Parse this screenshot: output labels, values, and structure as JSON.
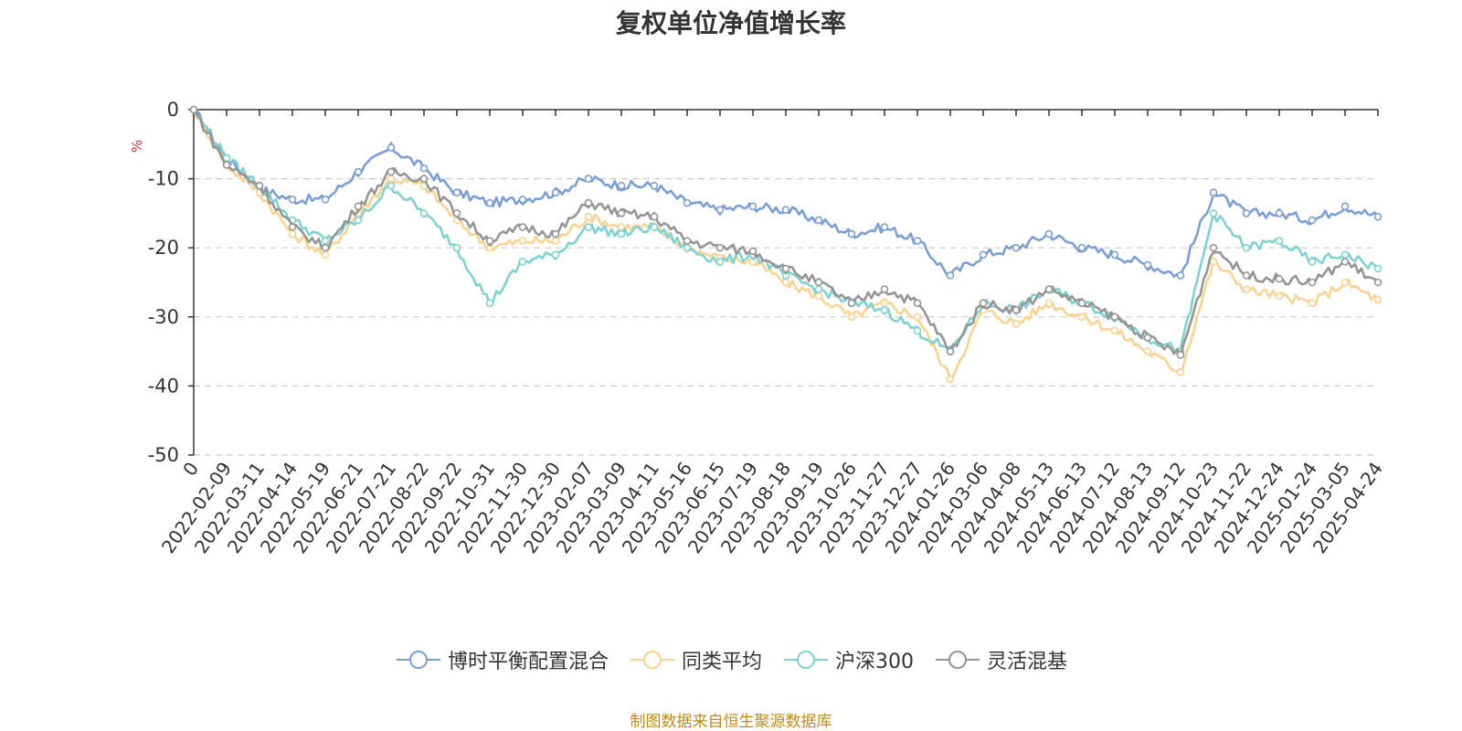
{
  "chart_data": {
    "type": "line",
    "title": "复权单位净值增长率",
    "ylabel": "%",
    "xlabel": "",
    "ylim": [
      -50,
      0
    ],
    "yticks": [
      0,
      -10,
      -20,
      -30,
      -40,
      -50
    ],
    "grid": true,
    "legend_position": "bottom",
    "x_tick_labels": [
      "0",
      "2022-02-09",
      "2022-03-11",
      "2022-04-14",
      "2022-05-19",
      "2022-06-21",
      "2022-07-21",
      "2022-08-22",
      "2022-09-22",
      "2022-10-31",
      "2022-11-30",
      "2022-12-30",
      "2023-02-07",
      "2023-03-09",
      "2023-04-11",
      "2023-05-16",
      "2023-06-15",
      "2023-07-19",
      "2023-08-18",
      "2023-09-19",
      "2023-10-26",
      "2023-11-27",
      "2023-12-27",
      "2024-01-26",
      "2024-03-06",
      "2024-04-08",
      "2024-05-13",
      "2024-06-13",
      "2024-07-12",
      "2024-08-13",
      "2024-09-12",
      "2024-10-23",
      "2024-11-22",
      "2024-12-24",
      "2025-01-24",
      "2025-03-05",
      "2025-04-24"
    ],
    "x": [
      "0",
      "2022-02-09",
      "2022-03-11",
      "2022-04-14",
      "2022-05-19",
      "2022-06-21",
      "2022-07-21",
      "2022-08-22",
      "2022-09-22",
      "2022-10-31",
      "2022-11-30",
      "2022-12-30",
      "2023-02-07",
      "2023-03-09",
      "2023-04-11",
      "2023-05-16",
      "2023-06-15",
      "2023-07-19",
      "2023-08-18",
      "2023-09-19",
      "2023-10-26",
      "2023-11-27",
      "2023-12-27",
      "2024-01-26",
      "2024-03-06",
      "2024-04-08",
      "2024-05-13",
      "2024-06-13",
      "2024-07-12",
      "2024-08-13",
      "2024-09-12",
      "2024-10-23",
      "2024-11-22",
      "2024-12-24",
      "2025-01-24",
      "2025-03-05",
      "2025-04-24"
    ],
    "series": [
      {
        "name": "博时平衡配置混合",
        "color": "#7b9fd4",
        "values": [
          0,
          -7,
          -11.5,
          -13,
          -13,
          -9,
          -5.5,
          -8.5,
          -12,
          -13.5,
          -13,
          -12,
          -10,
          -11,
          -11,
          -13.5,
          -14.5,
          -14,
          -14.5,
          -16,
          -18,
          -17,
          -19,
          -24,
          -21,
          -20,
          -18,
          -20,
          -21,
          -22.5,
          -24,
          -12,
          -15,
          -15,
          -16,
          -14,
          -15.5
        ]
      },
      {
        "name": "同类平均",
        "color": "#f9d38f",
        "values": [
          0,
          -8,
          -12,
          -18,
          -21,
          -15,
          -10,
          -11,
          -16,
          -20,
          -19,
          -19,
          -15.5,
          -17,
          -17,
          -20,
          -21.5,
          -22,
          -25,
          -27,
          -30,
          -28,
          -30,
          -39,
          -29,
          -31,
          -28,
          -30,
          -32,
          -35,
          -38,
          -22,
          -26,
          -27,
          -28,
          -25,
          -27.5
        ]
      },
      {
        "name": "沪深300",
        "color": "#7fd2d1",
        "values": [
          0,
          -7,
          -11,
          -16,
          -19,
          -16,
          -11,
          -15,
          -20,
          -28,
          -22,
          -21,
          -17,
          -18,
          -17,
          -20,
          -22,
          -21,
          -24,
          -26,
          -28,
          -29,
          -32,
          -35,
          -28,
          -29,
          -26,
          -28,
          -30,
          -33,
          -35,
          -15,
          -20,
          -19,
          -22,
          -21,
          -23
        ]
      },
      {
        "name": "灵活混基",
        "color": "#959595",
        "values": [
          0,
          -8,
          -11,
          -17,
          -20,
          -14,
          -9,
          -10,
          -15,
          -19,
          -17,
          -18,
          -13.5,
          -15,
          -15.5,
          -19,
          -20,
          -20.5,
          -23,
          -25,
          -28,
          -26,
          -28,
          -35,
          -28,
          -29,
          -26,
          -28,
          -30,
          -33,
          -35.5,
          -20,
          -24,
          -24.5,
          -25,
          -22,
          -25
        ]
      }
    ]
  },
  "source_text": "制图数据来自恒生聚源数据库",
  "source_color": "#c08a1c"
}
